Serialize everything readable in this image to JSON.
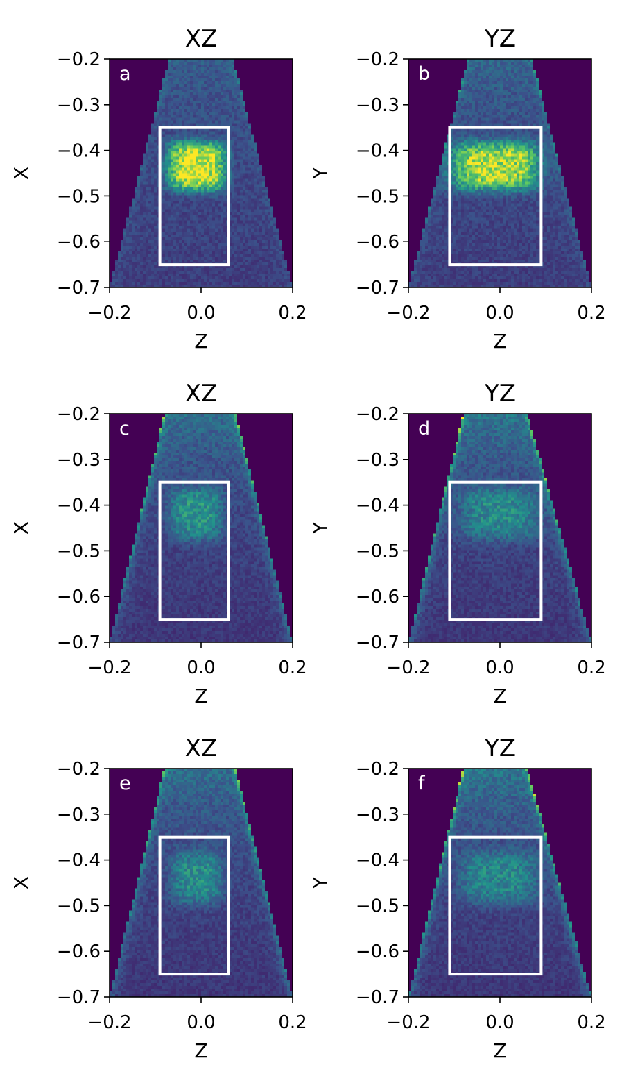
{
  "figure": {
    "colormap": [
      "#440154",
      "#3b528b",
      "#21918c",
      "#5ec962",
      "#fde725"
    ],
    "box_color": "#ffffff"
  },
  "chart_data": [
    {
      "type": "heatmap",
      "panel": "a",
      "title": "XZ",
      "xlabel": "Z",
      "ylabel": "X",
      "xlim": [
        -0.2,
        0.2
      ],
      "ylim": [
        -0.7,
        -0.2
      ],
      "xticks": [
        "−0.2",
        "0.0",
        "0.2"
      ],
      "yticks": [
        "−0.2",
        "−0.3",
        "−0.4",
        "−0.5",
        "−0.6",
        "−0.7"
      ],
      "box": {
        "z": [
          -0.09,
          0.06
        ],
        "v": [
          -0.65,
          -0.35
        ]
      },
      "cone": {
        "top": [
          -0.07,
          0.07
        ],
        "bottom": [
          -0.2,
          0.2
        ],
        "edge_intensity": 0.15,
        "interior_intensity": 0.25
      },
      "blob": {
        "z": -0.01,
        "v": -0.435,
        "rz": 0.065,
        "rv": 0.055,
        "intensity": 1.0
      }
    },
    {
      "type": "heatmap",
      "panel": "b",
      "title": "YZ",
      "xlabel": "Z",
      "ylabel": "Y",
      "xlim": [
        -0.2,
        0.2
      ],
      "ylim": [
        -0.7,
        -0.2
      ],
      "xticks": [
        "−0.2",
        "0.0",
        "0.2"
      ],
      "yticks": [
        "−0.2",
        "−0.3",
        "−0.4",
        "−0.5",
        "−0.6",
        "−0.7"
      ],
      "box": {
        "z": [
          -0.11,
          0.09
        ],
        "v": [
          -0.65,
          -0.35
        ]
      },
      "cone": {
        "top": [
          -0.07,
          0.07
        ],
        "bottom": [
          -0.2,
          0.2
        ],
        "edge_intensity": 0.25,
        "interior_intensity": 0.25
      },
      "blob": {
        "z": -0.01,
        "v": -0.435,
        "rz": 0.1,
        "rv": 0.055,
        "intensity": 0.85
      }
    },
    {
      "type": "heatmap",
      "panel": "c",
      "title": "XZ",
      "xlabel": "Z",
      "ylabel": "X",
      "xlim": [
        -0.2,
        0.2
      ],
      "ylim": [
        -0.7,
        -0.2
      ],
      "xticks": [
        "−0.2",
        "0.0",
        "0.2"
      ],
      "yticks": [
        "−0.2",
        "−0.3",
        "−0.4",
        "−0.5",
        "−0.6",
        "−0.7"
      ],
      "box": {
        "z": [
          -0.09,
          0.06
        ],
        "v": [
          -0.65,
          -0.35
        ]
      },
      "cone": {
        "top": [
          -0.08,
          0.075
        ],
        "bottom": [
          -0.2,
          0.2
        ],
        "edge_intensity": 0.45,
        "interior_intensity": 0.22
      },
      "blob": {
        "z": -0.01,
        "v": -0.42,
        "rz": 0.06,
        "rv": 0.06,
        "intensity": 0.38
      }
    },
    {
      "type": "heatmap",
      "panel": "d",
      "title": "YZ",
      "xlabel": "Z",
      "ylabel": "Y",
      "xlim": [
        -0.2,
        0.2
      ],
      "ylim": [
        -0.7,
        -0.2
      ],
      "xticks": [
        "−0.2",
        "0.0",
        "0.2"
      ],
      "yticks": [
        "−0.2",
        "−0.3",
        "−0.4",
        "−0.5",
        "−0.6",
        "−0.7"
      ],
      "box": {
        "z": [
          -0.11,
          0.09
        ],
        "v": [
          -0.65,
          -0.35
        ]
      },
      "cone": {
        "top": [
          -0.08,
          0.06
        ],
        "bottom": [
          -0.2,
          0.2
        ],
        "edge_intensity": 0.55,
        "interior_intensity": 0.22
      },
      "blob": {
        "z": 0.0,
        "v": -0.42,
        "rz": 0.09,
        "rv": 0.06,
        "intensity": 0.32
      }
    },
    {
      "type": "heatmap",
      "panel": "e",
      "title": "XZ",
      "xlabel": "Z",
      "ylabel": "X",
      "xlim": [
        -0.2,
        0.2
      ],
      "ylim": [
        -0.7,
        -0.2
      ],
      "xticks": [
        "−0.2",
        "0.0",
        "0.2"
      ],
      "yticks": [
        "−0.2",
        "−0.3",
        "−0.4",
        "−0.5",
        "−0.6",
        "−0.7"
      ],
      "box": {
        "z": [
          -0.09,
          0.06
        ],
        "v": [
          -0.65,
          -0.35
        ]
      },
      "cone": {
        "top": [
          -0.08,
          0.075
        ],
        "bottom": [
          -0.2,
          0.2
        ],
        "edge_intensity": 0.45,
        "interior_intensity": 0.22
      },
      "blob": {
        "z": -0.01,
        "v": -0.44,
        "rz": 0.06,
        "rv": 0.06,
        "intensity": 0.35
      }
    },
    {
      "type": "heatmap",
      "panel": "f",
      "title": "YZ",
      "xlabel": "Z",
      "ylabel": "Y",
      "xlim": [
        -0.2,
        0.2
      ],
      "ylim": [
        -0.7,
        -0.2
      ],
      "xticks": [
        "−0.2",
        "0.0",
        "0.2"
      ],
      "yticks": [
        "−0.2",
        "−0.3",
        "−0.4",
        "−0.5",
        "−0.6",
        "−0.7"
      ],
      "box": {
        "z": [
          -0.11,
          0.09
        ],
        "v": [
          -0.65,
          -0.35
        ]
      },
      "cone": {
        "top": [
          -0.08,
          0.06
        ],
        "bottom": [
          -0.2,
          0.2
        ],
        "edge_intensity": 0.55,
        "interior_intensity": 0.22
      },
      "blob": {
        "z": 0.0,
        "v": -0.44,
        "rz": 0.09,
        "rv": 0.06,
        "intensity": 0.32
      }
    }
  ]
}
